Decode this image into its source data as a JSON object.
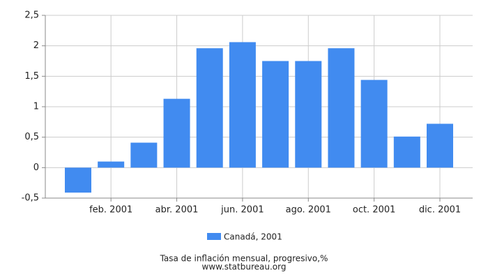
{
  "chart_data": {
    "type": "bar",
    "categories": [
      null,
      "feb. 2001",
      null,
      "abr. 2001",
      null,
      "jun. 2001",
      null,
      "ago. 2001",
      null,
      "oct. 2001",
      null,
      "dic. 2001"
    ],
    "series": [
      {
        "name": "Canadá, 2001",
        "color": "#418bf0",
        "values": [
          -0.41,
          0.1,
          0.41,
          1.13,
          1.96,
          2.06,
          1.75,
          1.75,
          1.96,
          1.44,
          0.51,
          0.72
        ]
      }
    ],
    "ylim": [
      -0.5,
      2.5
    ],
    "yticks": [
      {
        "value": -0.5,
        "label": "-0,5"
      },
      0,
      {
        "value": 0.5,
        "label": "0,5"
      },
      1,
      {
        "value": 1.5,
        "label": "1,5"
      },
      2,
      {
        "value": 2.5,
        "label": "2,5"
      }
    ],
    "grid": true,
    "legend": "bottom",
    "caption": "Tasa de inflación mensual, progresivo,%",
    "source": "www.statbureau.org"
  }
}
